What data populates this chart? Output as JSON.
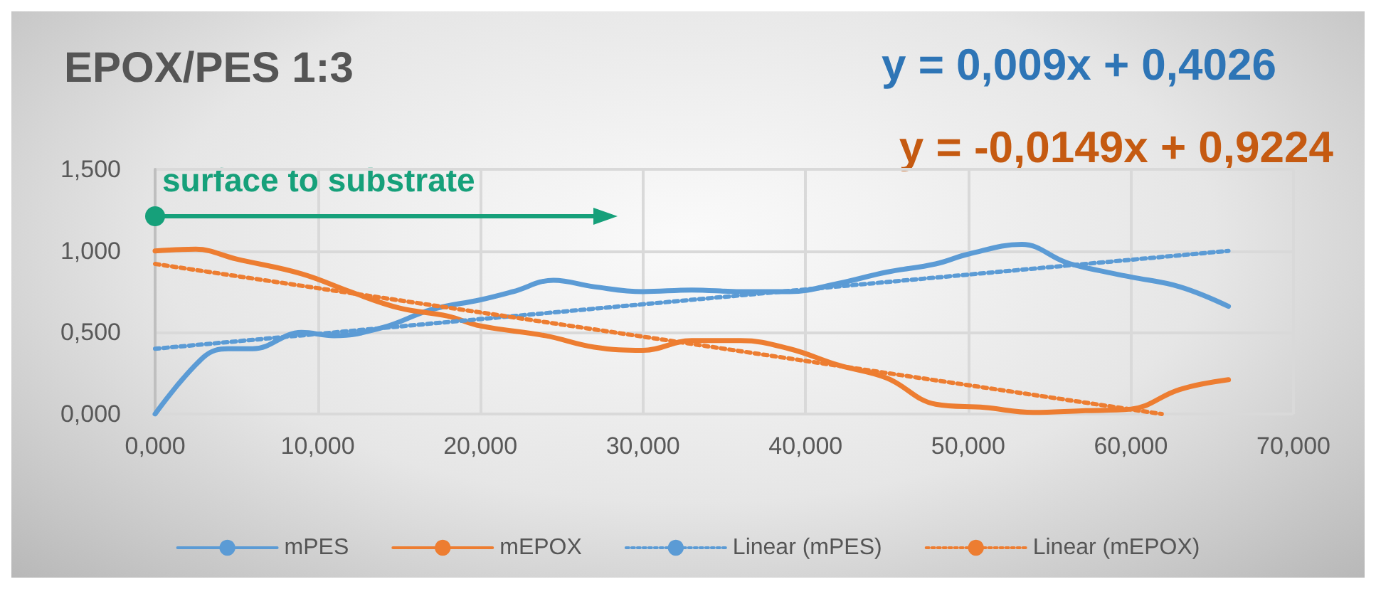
{
  "chart_data": {
    "type": "line",
    "title": "EPOX/PES 1:3",
    "annotations": [
      "y = 0,009x + 0,4026",
      "y = -0,0149x + 0,9224",
      "surface to substrate"
    ],
    "xlim": [
      0,
      70
    ],
    "xticks": [
      {
        "value": 0,
        "label": "0,000"
      },
      {
        "value": 10,
        "label": "10,000"
      },
      {
        "value": 20,
        "label": "20,000"
      },
      {
        "value": 30,
        "label": "30,000"
      },
      {
        "value": 40,
        "label": "40,000"
      },
      {
        "value": 50,
        "label": "50,000"
      },
      {
        "value": 60,
        "label": "60,000"
      },
      {
        "value": 70,
        "label": "70,000"
      }
    ],
    "ylim": [
      0,
      1.5
    ],
    "yticks": [
      {
        "value": 0,
        "label": "0,000"
      },
      {
        "value": 0.5,
        "label": "0,500"
      },
      {
        "value": 1,
        "label": "1,000"
      },
      {
        "value": 1.5,
        "label": "1,500"
      }
    ],
    "grid": true,
    "legend": "bottom",
    "marker": "none",
    "series": [
      {
        "name": "mPES",
        "color": "#5b9bd5",
        "line_style": "solid",
        "x": [
          0,
          3,
          4.5,
          6,
          9,
          11,
          14,
          17,
          20,
          22,
          24.5,
          27,
          30,
          33,
          36,
          39,
          42,
          45,
          48,
          50,
          53.3,
          56,
          58,
          60,
          63,
          66
        ],
        "values": [
          0,
          0.35,
          0.4,
          0.4,
          0.5,
          0.48,
          0.53,
          0.64,
          0.7,
          0.75,
          0.82,
          0.78,
          0.75,
          0.76,
          0.75,
          0.75,
          0.8,
          0.87,
          0.92,
          0.98,
          1.04,
          0.93,
          0.88,
          0.84,
          0.78,
          0.66
        ]
      },
      {
        "name": "mEPOX",
        "color": "#ed7d31",
        "line_style": "solid",
        "x": [
          0,
          2.5,
          5,
          9,
          12,
          15,
          18,
          20,
          24,
          27,
          30,
          33,
          36,
          39,
          42,
          45,
          48,
          51,
          54,
          57,
          60,
          63,
          66
        ],
        "values": [
          1.0,
          1.01,
          0.95,
          0.86,
          0.75,
          0.65,
          0.6,
          0.54,
          0.48,
          0.41,
          0.39,
          0.45,
          0.45,
          0.4,
          0.3,
          0.22,
          0.06,
          0.04,
          0.01,
          0.02,
          0.03,
          0.15,
          0.21
        ]
      },
      {
        "name": "Linear (mPES)",
        "color": "#5b9bd5",
        "line_style": "dotted",
        "x": [
          0,
          66
        ],
        "values": [
          0.4,
          1.0
        ]
      },
      {
        "name": "Linear (mEPOX)",
        "color": "#ed7d31",
        "line_style": "dotted",
        "x": [
          0,
          61.9
        ],
        "values": [
          0.92,
          0
        ]
      }
    ]
  }
}
